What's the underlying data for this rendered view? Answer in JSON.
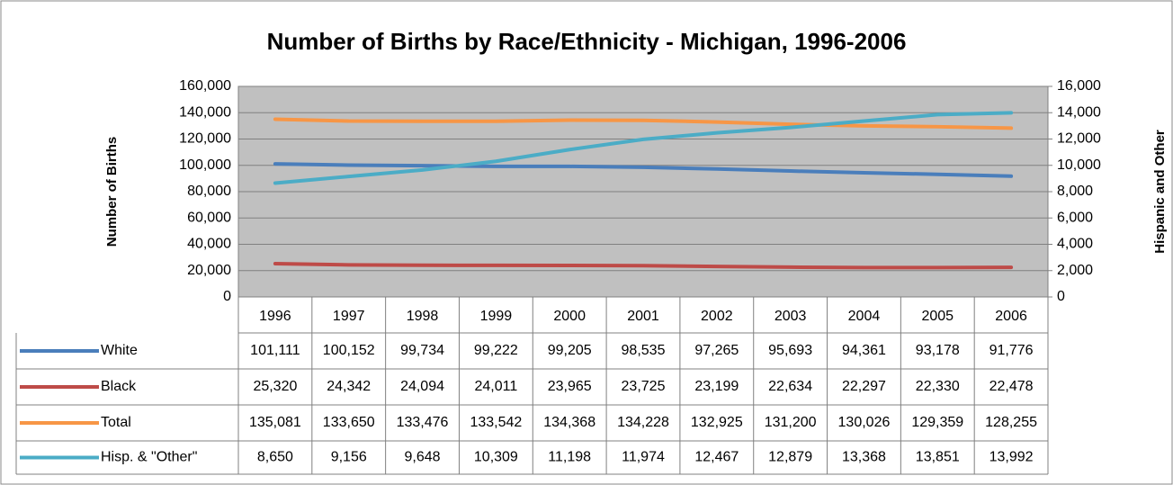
{
  "chart_data": {
    "type": "line",
    "title": "Number of Births by Race/Ethnicity - Michigan, 1996-2006",
    "y_label": "Number of Births",
    "y2_label": "Hispanic and Other",
    "categories": [
      "1996",
      "1997",
      "1998",
      "1999",
      "2000",
      "2001",
      "2002",
      "2003",
      "2004",
      "2005",
      "2006"
    ],
    "ylim": [
      0,
      160000
    ],
    "yticks": [
      0,
      {
        "value": 20000,
        "label": "20,000"
      },
      {
        "value": 40000,
        "label": "40,000"
      },
      {
        "value": 60000,
        "label": "60,000"
      },
      {
        "value": 80000,
        "label": "80,000"
      },
      {
        "value": 100000,
        "label": "100,000"
      },
      {
        "value": 120000,
        "label": "120,000"
      },
      {
        "value": 140000,
        "label": "140,000"
      },
      {
        "value": 160000,
        "label": "160,000"
      }
    ],
    "y2lim": [
      0,
      16000
    ],
    "y2ticks": [
      0,
      {
        "value": 2000,
        "label": "2,000"
      },
      {
        "value": 4000,
        "label": "4,000"
      },
      {
        "value": 6000,
        "label": "6,000"
      },
      {
        "value": 8000,
        "label": "8,000"
      },
      {
        "value": 10000,
        "label": "10,000"
      },
      {
        "value": 12000,
        "label": "12,000"
      },
      {
        "value": 14000,
        "label": "14,000"
      },
      {
        "value": 16000,
        "label": "16,000"
      }
    ],
    "grid": true,
    "series": [
      {
        "name": "White",
        "color": "#4a7ebb",
        "values": [
          101111,
          100152,
          99734,
          99222,
          99205,
          98535,
          97265,
          95693,
          94361,
          93178,
          91776
        ],
        "value_labels": [
          "101,111",
          "100,152",
          "99,734",
          "99,222",
          "99,205",
          "98,535",
          "97,265",
          "95,693",
          "94,361",
          "93,178",
          "91,776"
        ]
      },
      {
        "name": "Black",
        "color": "#be4b48",
        "values": [
          25320,
          24342,
          24094,
          24011,
          23965,
          23725,
          23199,
          22634,
          22297,
          22330,
          22478
        ],
        "value_labels": [
          "25,320",
          "24,342",
          "24,094",
          "24,011",
          "23,965",
          "23,725",
          "23,199",
          "22,634",
          "22,297",
          "22,330",
          "22,478"
        ]
      },
      {
        "name": "Total",
        "color": "#f79646",
        "values": [
          135081,
          133650,
          133476,
          133542,
          134368,
          134228,
          132925,
          131200,
          130026,
          129359,
          128255
        ],
        "value_labels": [
          "135,081",
          "133,650",
          "133,476",
          "133,542",
          "134,368",
          "134,228",
          "132,925",
          "131,200",
          "130,026",
          "129,359",
          "128,255"
        ]
      },
      {
        "name": "Hisp. & \"Other\"",
        "color": "#4bacc6",
        "axis": "y2",
        "values": [
          8650,
          9156,
          9648,
          10309,
          11198,
          11974,
          12467,
          12879,
          13368,
          13851,
          13992
        ],
        "value_labels": [
          "8,650",
          "9,156",
          "9,648",
          "10,309",
          "11,198",
          "11,974",
          "12,467",
          "12,879",
          "13,368",
          "13,851",
          "13,992"
        ]
      }
    ]
  }
}
